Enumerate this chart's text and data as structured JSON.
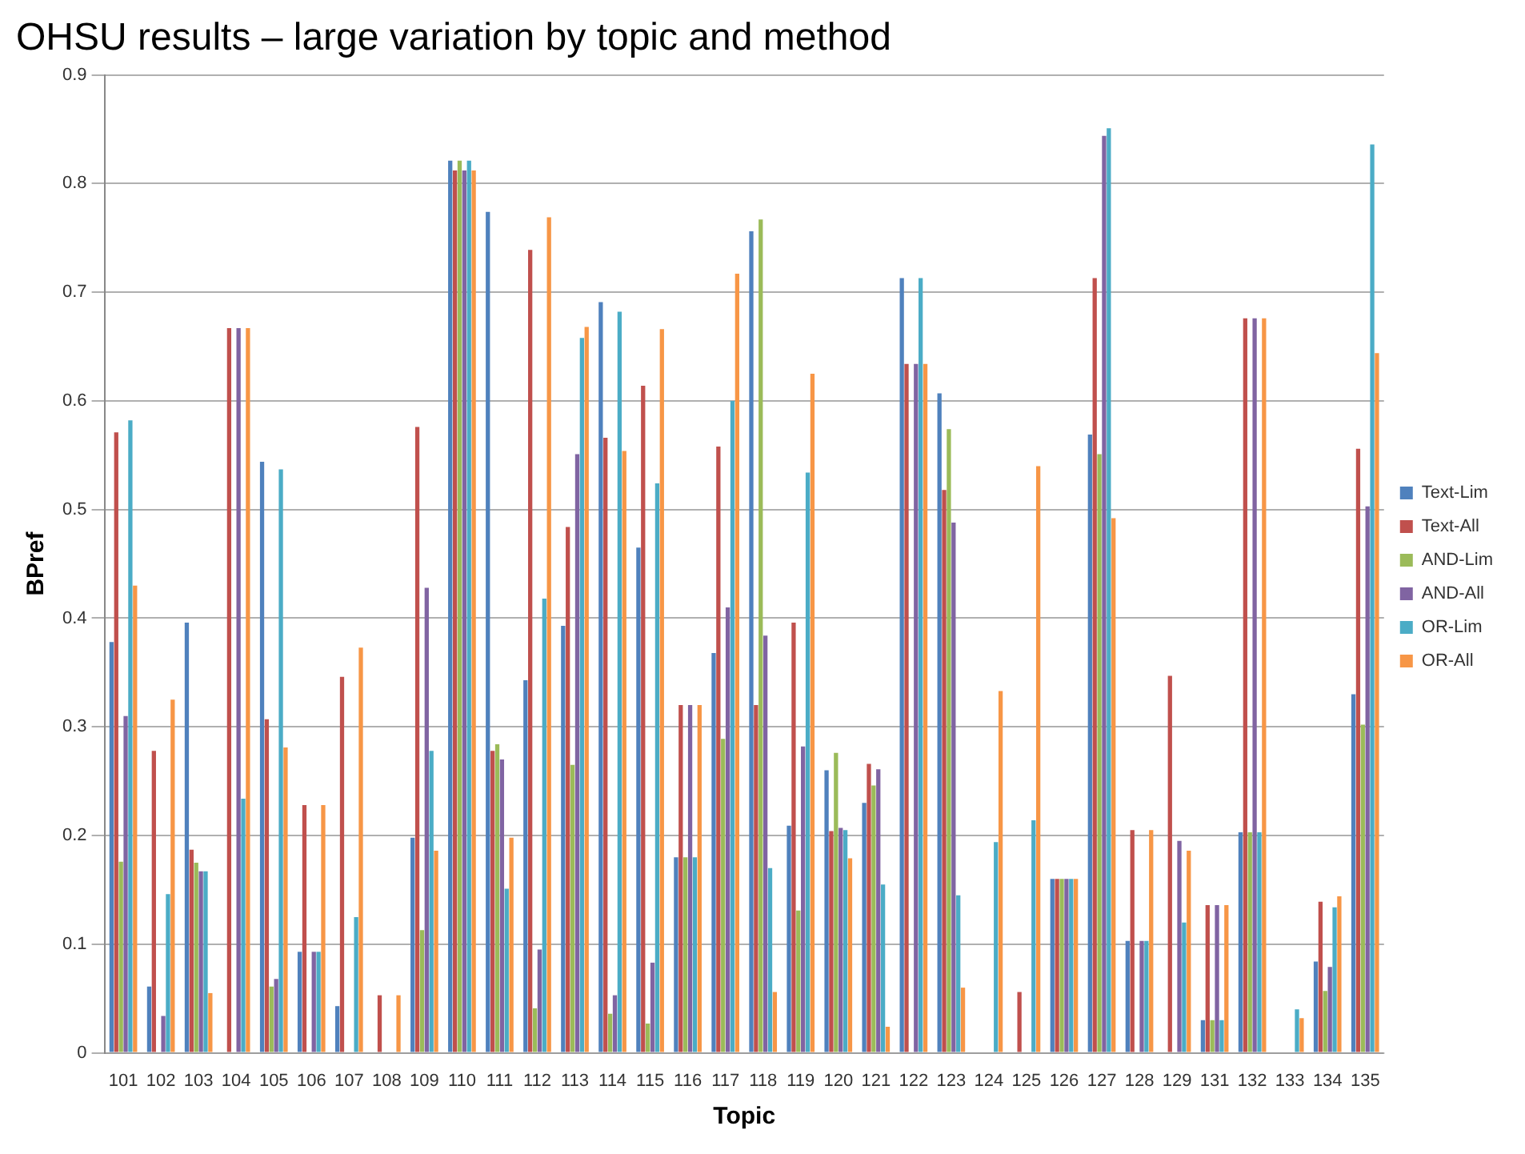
{
  "chart_data": {
    "type": "bar",
    "title": "OHSU results – large variation by topic and method",
    "xlabel": "Topic",
    "ylabel": "BPref",
    "categories": [
      "101",
      "102",
      "103",
      "104",
      "105",
      "106",
      "107",
      "108",
      "109",
      "110",
      "111",
      "112",
      "113",
      "114",
      "115",
      "116",
      "117",
      "118",
      "119",
      "120",
      "121",
      "122",
      "123",
      "124",
      "125",
      "126",
      "127",
      "128",
      "129",
      "131",
      "132",
      "133",
      "134",
      "135"
    ],
    "series": [
      {
        "name": "Text-Lim",
        "color": "#4f81bd",
        "values": [
          0.378,
          0.061,
          0.396,
          0,
          0.544,
          0.093,
          0.043,
          0,
          0.198,
          0.821,
          0.774,
          0.343,
          0.393,
          0.691,
          0.465,
          0.18,
          0.368,
          0.756,
          0.209,
          0.26,
          0.23,
          0.713,
          0.607,
          0,
          0,
          0.16,
          0.569,
          0.103,
          0,
          0.03,
          0.203,
          0,
          0.084,
          0.33
        ]
      },
      {
        "name": "Text-All",
        "color": "#c0504d",
        "values": [
          0.571,
          0.278,
          0.187,
          0.667,
          0.307,
          0.228,
          0.346,
          0.053,
          0.576,
          0.812,
          0.278,
          0.739,
          0.484,
          0.566,
          0.614,
          0.32,
          0.558,
          0.32,
          0.396,
          0.204,
          0.266,
          0.634,
          0.518,
          0,
          0.056,
          0.16,
          0.713,
          0.205,
          0.347,
          0.136,
          0.676,
          0,
          0.139,
          0.556
        ]
      },
      {
        "name": "AND-Lim",
        "color": "#9bbb59",
        "values": [
          0.176,
          0,
          0.175,
          0,
          0.061,
          0,
          0,
          0,
          0.113,
          0.821,
          0.284,
          0.041,
          0.265,
          0.036,
          0.027,
          0.18,
          0.289,
          0.767,
          0.131,
          0.276,
          0.246,
          0,
          0.574,
          0,
          0,
          0.16,
          0.551,
          0,
          0,
          0.03,
          0.203,
          0,
          0.057,
          0.302
        ]
      },
      {
        "name": "AND-All",
        "color": "#8064a2",
        "values": [
          0.31,
          0.034,
          0.167,
          0.667,
          0.068,
          0.093,
          0,
          0,
          0.428,
          0.812,
          0.27,
          0.095,
          0.551,
          0.053,
          0.083,
          0.32,
          0.41,
          0.384,
          0.282,
          0.207,
          0.261,
          0.634,
          0.488,
          0,
          0,
          0.16,
          0.844,
          0.103,
          0.195,
          0.136,
          0.676,
          0,
          0.079,
          0.503
        ]
      },
      {
        "name": "OR-Lim",
        "color": "#4bacc6",
        "values": [
          0.582,
          0.146,
          0.167,
          0.234,
          0.537,
          0.093,
          0.125,
          0,
          0.278,
          0.821,
          0.151,
          0.418,
          0.658,
          0.682,
          0.524,
          0.18,
          0.6,
          0.17,
          0.534,
          0.205,
          0.155,
          0.713,
          0.145,
          0.194,
          0.214,
          0.16,
          0.851,
          0.103,
          0.12,
          0.03,
          0.203,
          0.04,
          0.134,
          0.836
        ]
      },
      {
        "name": "OR-All",
        "color": "#f79646",
        "values": [
          0.43,
          0.325,
          0.055,
          0.667,
          0.281,
          0.228,
          0.373,
          0.053,
          0.186,
          0.812,
          0.198,
          0.769,
          0.668,
          0.554,
          0.666,
          0.32,
          0.717,
          0.056,
          0.625,
          0.179,
          0.024,
          0.634,
          0.06,
          0.333,
          0.54,
          0.16,
          0.492,
          0.205,
          0.186,
          0.136,
          0.676,
          0.032,
          0.144,
          0.644
        ]
      }
    ],
    "ylim": [
      0,
      0.9
    ],
    "yticks": [
      0,
      0.1,
      0.2,
      0.3,
      0.4,
      0.5,
      0.6,
      0.7,
      0.8,
      0.9
    ],
    "grid": "y",
    "legend": "right"
  }
}
